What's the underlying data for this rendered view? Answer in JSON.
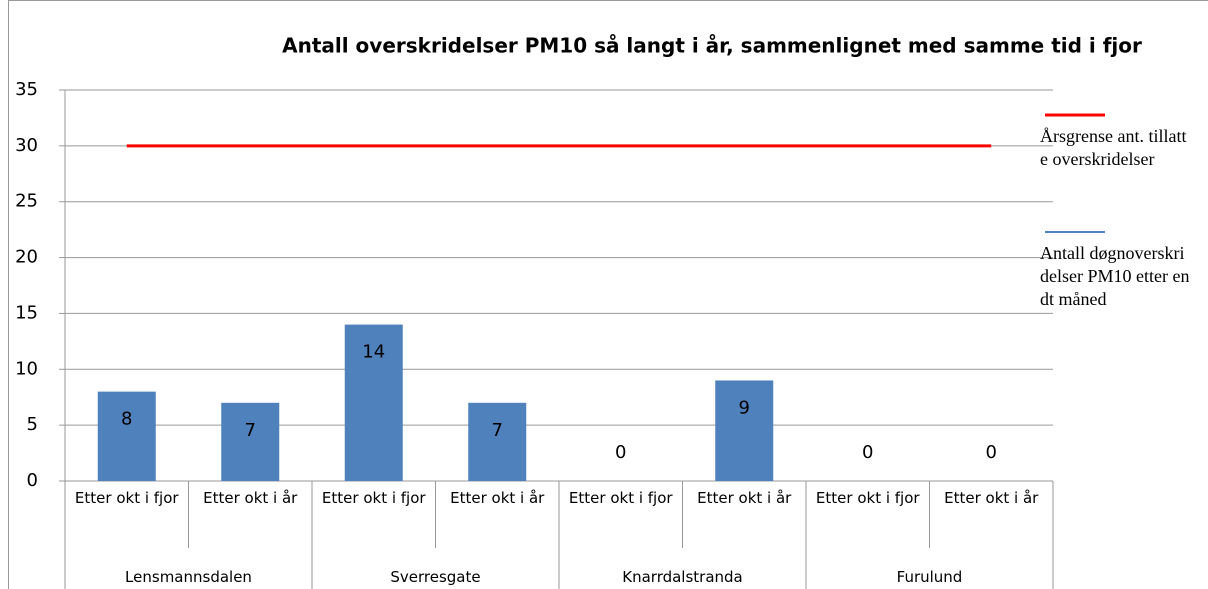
{
  "chart_data": {
    "type": "bar",
    "title": "Antall overskridelser  PM10 så langt i år, sammenlignet med samme tid i fjor",
    "categories": [
      "Etter okt i fjor",
      "Etter okt i år",
      "Etter okt i fjor",
      "Etter okt i år",
      "Etter okt i fjor",
      "Etter okt i år",
      "Etter okt i fjor",
      "Etter okt i år"
    ],
    "groups": [
      "Lensmannsdalen",
      "Sverresgate",
      "Knarrdalstranda",
      "Furulund"
    ],
    "series": [
      {
        "name": "Årsgrense ant. tillatte overskridelser",
        "type": "line",
        "color": "#ff0000",
        "values": [
          30,
          30,
          30,
          30,
          30,
          30,
          30,
          30
        ]
      },
      {
        "name": "Antall døgnoverskridelser PM10 etter endt måned",
        "type": "bar",
        "color": "#4f81bd",
        "values": [
          8,
          7,
          14,
          7,
          0,
          9,
          0,
          0
        ]
      }
    ],
    "ylim": [
      0,
      35
    ],
    "yticks": [
      0,
      5,
      10,
      15,
      20,
      25,
      30,
      35
    ],
    "grid": true,
    "legend": "right"
  }
}
